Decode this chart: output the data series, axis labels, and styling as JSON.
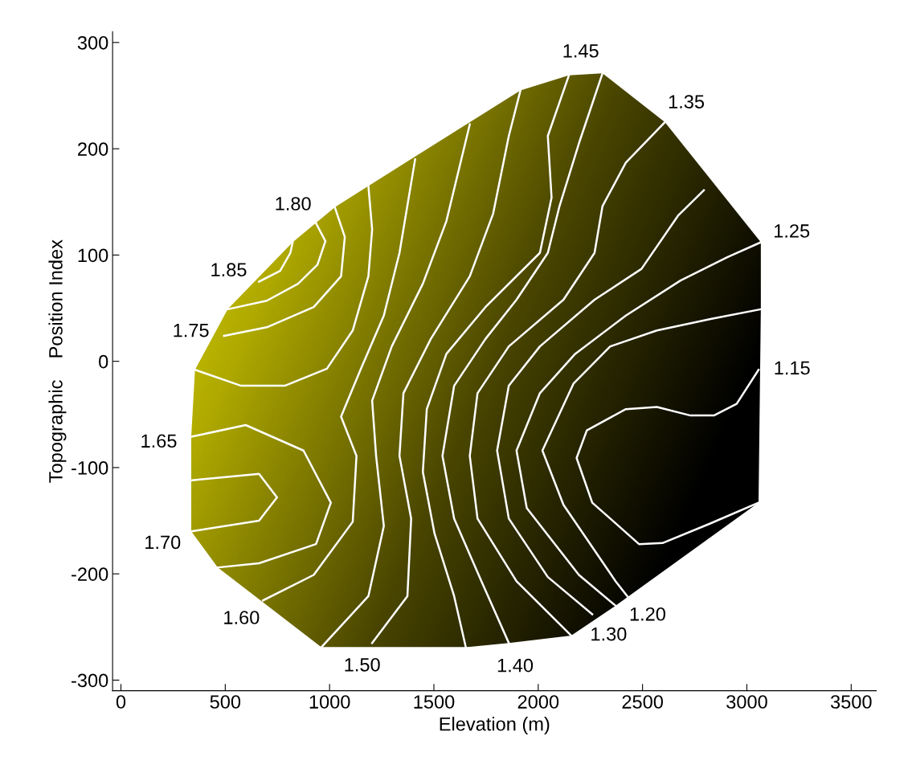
{
  "chart_data": {
    "type": "line",
    "xlabel": "Elevation (m)",
    "ylabel": "Topographic    Position Index",
    "marker": "none",
    "line_style": "solid",
    "legend": false,
    "grid": false,
    "xlim": [
      -40,
      3620
    ],
    "xticks": [
      0,
      500,
      1000,
      1500,
      2000,
      2500,
      3000,
      3500
    ],
    "ylim": [
      -310,
      310
    ],
    "yticks": [
      -300,
      -200,
      -100,
      0,
      100,
      200,
      300
    ],
    "series": [
      {
        "name": "1.85",
        "color": "#ffffff",
        "x": [
          662,
          763,
          812,
          823
        ],
        "values": [
          75,
          85,
          102,
          112
        ]
      },
      {
        "name": "1.80",
        "color": "#ffffff",
        "x": [
          935,
          980,
          942,
          849,
          699,
          512
        ],
        "values": [
          130,
          113,
          91,
          73,
          57,
          49
        ]
      },
      {
        "name": "1.75",
        "color": "#ffffff",
        "x": [
          494,
          699,
          924,
          1055,
          1073,
          1025
        ],
        "values": [
          24,
          32,
          51,
          80,
          117,
          145
        ]
      },
      {
        "color": "#ffffff",
        "x": [
          355,
          576,
          785,
          987,
          1111,
          1186,
          1204,
          1186
        ],
        "values": [
          -8,
          -23,
          -23,
          -7,
          29,
          80,
          124,
          165
        ]
      },
      {
        "name": "1.65",
        "color": "#ffffff",
        "x": [
          337,
          598,
          875,
          1006,
          935,
          662,
          464
        ],
        "values": [
          -71,
          -60,
          -84,
          -133,
          -172,
          -190,
          -194
        ]
      },
      {
        "name": "1.70",
        "color": "#ffffff",
        "x": [
          337,
          662,
          748,
          662,
          337
        ],
        "values": [
          -160,
          -150,
          -128,
          -106,
          -112
        ]
      },
      {
        "name": "1.60",
        "color": "#ffffff",
        "x": [
          681,
          924,
          1111,
          1129,
          1055,
          1148,
          1260,
          1335,
          1410
        ],
        "values": [
          -225,
          -201,
          -151,
          -89,
          -52,
          -8,
          43,
          102,
          190
        ]
      },
      {
        "color": "#ffffff",
        "x": [
          961,
          1186,
          1260,
          1223,
          1204,
          1298,
          1447,
          1560,
          1672
        ],
        "values": [
          -269,
          -221,
          -155,
          -89,
          -37,
          14,
          73,
          132,
          223
        ]
      },
      {
        "name": "1.50",
        "color": "#ffffff",
        "x": [
          1204,
          1373,
          1391,
          1335,
          1354,
          1485,
          1672,
          1784,
          1859,
          1915
        ],
        "values": [
          -265,
          -221,
          -148,
          -89,
          -30,
          21,
          80,
          139,
          212,
          255
        ]
      },
      {
        "name": "1.45",
        "color": "#ffffff",
        "x": [
          2147,
          2046,
          2064,
          2008,
          1747,
          1560,
          1466,
          1447,
          1503,
          1597,
          1653
        ],
        "values": [
          269,
          212,
          154,
          102,
          51,
          7,
          -45,
          -104,
          -162,
          -221,
          -269
        ]
      },
      {
        "name": "1.40",
        "color": "#ffffff",
        "x": [
          1859,
          1728,
          1597,
          1541,
          1597,
          1747,
          1896,
          2046,
          2102,
          2195,
          2308
        ],
        "values": [
          -265,
          -207,
          -148,
          -89,
          -23,
          21,
          58,
          102,
          146,
          205,
          271
        ]
      },
      {
        "name": "1.35",
        "color": "#ffffff",
        "x": [
          2607,
          2420,
          2308,
          2270,
          2121,
          1859,
          1709,
          1672,
          1709,
          1896,
          2158
        ],
        "values": [
          225,
          187,
          146,
          102,
          58,
          14,
          -30,
          -89,
          -148,
          -207,
          -258
        ]
      },
      {
        "name": "1.30",
        "color": "#ffffff",
        "x": [
          2259,
          2046,
          1859,
          1803,
          1859,
          2008,
          2270,
          2495,
          2670,
          2794
        ],
        "values": [
          -238,
          -203,
          -148,
          -84,
          -23,
          14,
          58,
          87,
          137,
          161
        ]
      },
      {
        "name": "1.25",
        "color": "#ffffff",
        "x": [
          3067,
          2906,
          2682,
          2420,
          2177,
          2008,
          1896,
          1945,
          2195,
          2371
        ],
        "values": [
          112,
          98,
          76,
          43,
          7,
          -30,
          -84,
          -138,
          -201,
          -230
        ]
      },
      {
        "name": "1.20",
        "color": "#ffffff",
        "x": [
          2427,
          2371,
          2121,
          2020,
          2169,
          2345,
          2569,
          2831,
          3067
        ],
        "values": [
          -221,
          -207,
          -135,
          -84,
          -21,
          14,
          29,
          40,
          49
        ]
      },
      {
        "name": "1.15",
        "color": "#ffffff",
        "x": [
          3056,
          2951,
          2842,
          2730,
          2569,
          2420,
          2233,
          2184,
          2259,
          2483,
          2596,
          2820,
          3056
        ],
        "values": [
          -8,
          -40,
          -51,
          -51,
          -43,
          -45,
          -65,
          -91,
          -133,
          -172,
          -171,
          -153,
          -133
        ]
      }
    ]
  }
}
